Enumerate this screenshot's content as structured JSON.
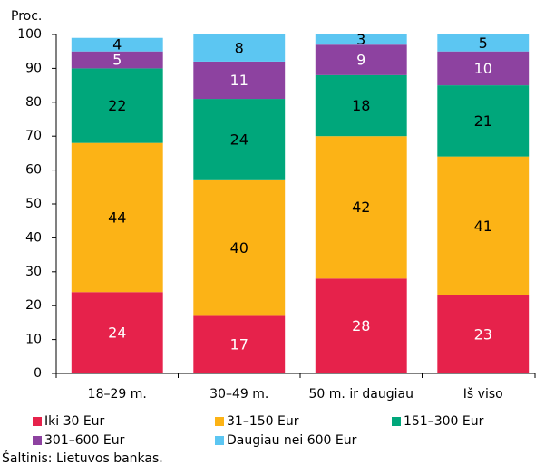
{
  "chart_data": {
    "type": "stacked_bar",
    "y_label": "Proc.",
    "source": "Šaltinis: Lietuvos bankas.",
    "categories": [
      "18–29 m.",
      "30–49 m.",
      "50 m. ir daugiau",
      "Iš viso"
    ],
    "series": [
      {
        "name": "Iki 30 Eur",
        "color": "#e6224b",
        "label_color": "#ffffff",
        "values": [
          24,
          17,
          28,
          23
        ]
      },
      {
        "name": "31–150 Eur",
        "color": "#fcb316",
        "label_color": "#000000",
        "values": [
          44,
          40,
          42,
          41
        ]
      },
      {
        "name": "151–300 Eur",
        "color": "#00a77b",
        "label_color": "#000000",
        "values": [
          22,
          24,
          18,
          21
        ]
      },
      {
        "name": "301–600 Eur",
        "color": "#8d42a0",
        "label_color": "#ffffff",
        "values": [
          5,
          11,
          9,
          10
        ]
      },
      {
        "name": "Daugiau nei 600 Eur",
        "color": "#5cc6f2",
        "label_color": "#000000",
        "values": [
          4,
          8,
          3,
          5
        ]
      }
    ],
    "ylim": [
      0,
      100
    ],
    "yticks": [
      0,
      10,
      20,
      30,
      40,
      50,
      60,
      70,
      80,
      90,
      100
    ],
    "grid": false
  }
}
